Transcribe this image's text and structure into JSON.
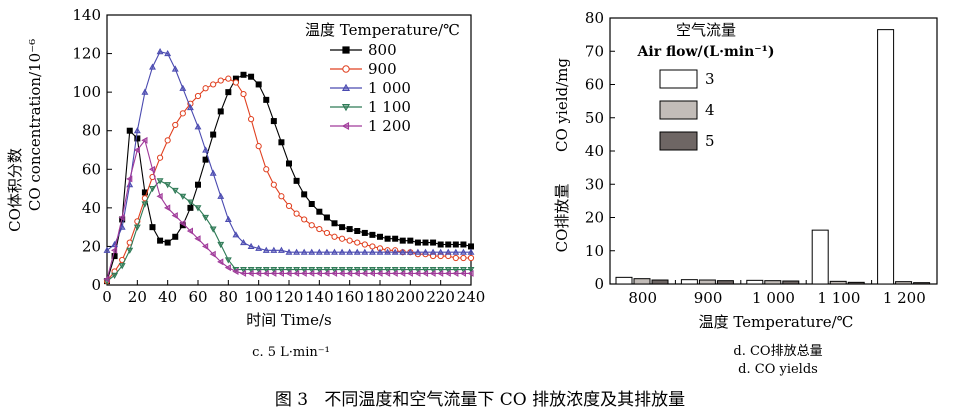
{
  "figure_caption": "图 3   不同温度和空气流量下 CO 排放浓度及其排放量",
  "chart_data": [
    {
      "type": "line",
      "panel": "c",
      "caption": "c. 5 L·min⁻¹",
      "xlabel": "时间 Time/s",
      "ylabel_cn": "CO体积分数",
      "ylabel_en": "CO concentration/10⁻⁶",
      "xlim": [
        0,
        240
      ],
      "ylim": [
        0,
        140
      ],
      "xticks": [
        0,
        20,
        40,
        60,
        80,
        100,
        120,
        140,
        160,
        180,
        200,
        220,
        240
      ],
      "yticks": [
        0,
        20,
        40,
        60,
        80,
        100,
        120,
        140
      ],
      "grid": false,
      "legend_title": "温度 Temperature/℃",
      "legend_position": "top-right",
      "x": [
        0,
        5,
        10,
        15,
        20,
        25,
        30,
        35,
        40,
        45,
        50,
        55,
        60,
        65,
        70,
        75,
        80,
        85,
        90,
        95,
        100,
        105,
        110,
        115,
        120,
        125,
        130,
        135,
        140,
        145,
        150,
        155,
        160,
        165,
        170,
        175,
        180,
        185,
        190,
        195,
        200,
        205,
        210,
        215,
        220,
        225,
        230,
        235,
        240
      ],
      "series": [
        {
          "name": "800",
          "color": "#000000",
          "marker": "square",
          "values": [
            2,
            15,
            34,
            80,
            76,
            48,
            30,
            23,
            22,
            25,
            31,
            40,
            52,
            65,
            78,
            90,
            100,
            107,
            109,
            108,
            104,
            96,
            85,
            74,
            63,
            54,
            47,
            42,
            38,
            35,
            32,
            30,
            29,
            28,
            27,
            26,
            25,
            24,
            24,
            23,
            23,
            22,
            22,
            22,
            21,
            21,
            21,
            21,
            20
          ]
        },
        {
          "name": "900",
          "color": "#e04020",
          "marker": "circle-open",
          "values": [
            2,
            7,
            13,
            22,
            33,
            45,
            56,
            66,
            75,
            83,
            89,
            94,
            98,
            102,
            104,
            106,
            107,
            105,
            99,
            86,
            72,
            60,
            52,
            46,
            41,
            37,
            34,
            31,
            29,
            27,
            25,
            24,
            23,
            22,
            21,
            20,
            19,
            18,
            18,
            17,
            17,
            16,
            16,
            15,
            15,
            15,
            14,
            14,
            14
          ]
        },
        {
          "name": "1 000",
          "color": "#4a4ab0",
          "marker": "triangle",
          "values": [
            18,
            21,
            30,
            52,
            80,
            100,
            113,
            121,
            120,
            112,
            102,
            92,
            82,
            70,
            58,
            46,
            34,
            26,
            22,
            20,
            19,
            18,
            18,
            18,
            17,
            17,
            17,
            17,
            17,
            17,
            17,
            17,
            17,
            17,
            17,
            17,
            17,
            17,
            17,
            17,
            17,
            17,
            17,
            17,
            17,
            17,
            17,
            17,
            17
          ]
        },
        {
          "name": "1 100",
          "color": "#2e7a56",
          "marker": "down-triangle",
          "values": [
            2,
            5,
            10,
            18,
            30,
            42,
            50,
            54,
            52,
            49,
            46,
            43,
            40,
            35,
            29,
            21,
            13,
            8,
            8,
            8,
            8,
            8,
            8,
            8,
            8,
            8,
            8,
            8,
            8,
            8,
            8,
            8,
            8,
            8,
            8,
            8,
            8,
            8,
            8,
            8,
            8,
            8,
            8,
            8,
            8,
            8,
            8,
            8,
            8
          ]
        },
        {
          "name": "1 200",
          "color": "#a03a9a",
          "marker": "left-triangle",
          "values": [
            3,
            18,
            35,
            55,
            70,
            75,
            60,
            46,
            40,
            36,
            32,
            28,
            24,
            20,
            16,
            12,
            9,
            7,
            6,
            6,
            6,
            6,
            6,
            6,
            6,
            6,
            6,
            6,
            6,
            6,
            6,
            6,
            6,
            6,
            6,
            6,
            6,
            6,
            6,
            6,
            6,
            6,
            6,
            6,
            6,
            6,
            6,
            6,
            6
          ]
        }
      ]
    },
    {
      "type": "bar",
      "panel": "d",
      "caption_cn": "d. CO排放总量",
      "caption_en": "d. CO yields",
      "xlabel": "温度 Temperature/℃",
      "ylabel_cn": "CO排放量",
      "ylabel_en": "CO yield/mg",
      "ylim": [
        0,
        80
      ],
      "yticks": [
        0,
        10,
        20,
        30,
        40,
        50,
        60,
        70,
        80
      ],
      "grid": false,
      "categories": [
        "800",
        "900",
        "1 000",
        "1 100",
        "1 200"
      ],
      "legend_title_cn": "空气流量",
      "legend_title_en": "Air flow/(L·min⁻¹)",
      "legend_position": "top-left",
      "series": [
        {
          "name": "3",
          "color": "#ffffff",
          "values": [
            2.0,
            1.3,
            1.1,
            16.2,
            76.5
          ]
        },
        {
          "name": "4",
          "color": "#c2bcb8",
          "values": [
            1.6,
            1.2,
            1.0,
            0.8,
            0.7
          ]
        },
        {
          "name": "5",
          "color": "#6e6664",
          "values": [
            1.2,
            1.0,
            0.9,
            0.5,
            0.4
          ]
        }
      ]
    }
  ]
}
